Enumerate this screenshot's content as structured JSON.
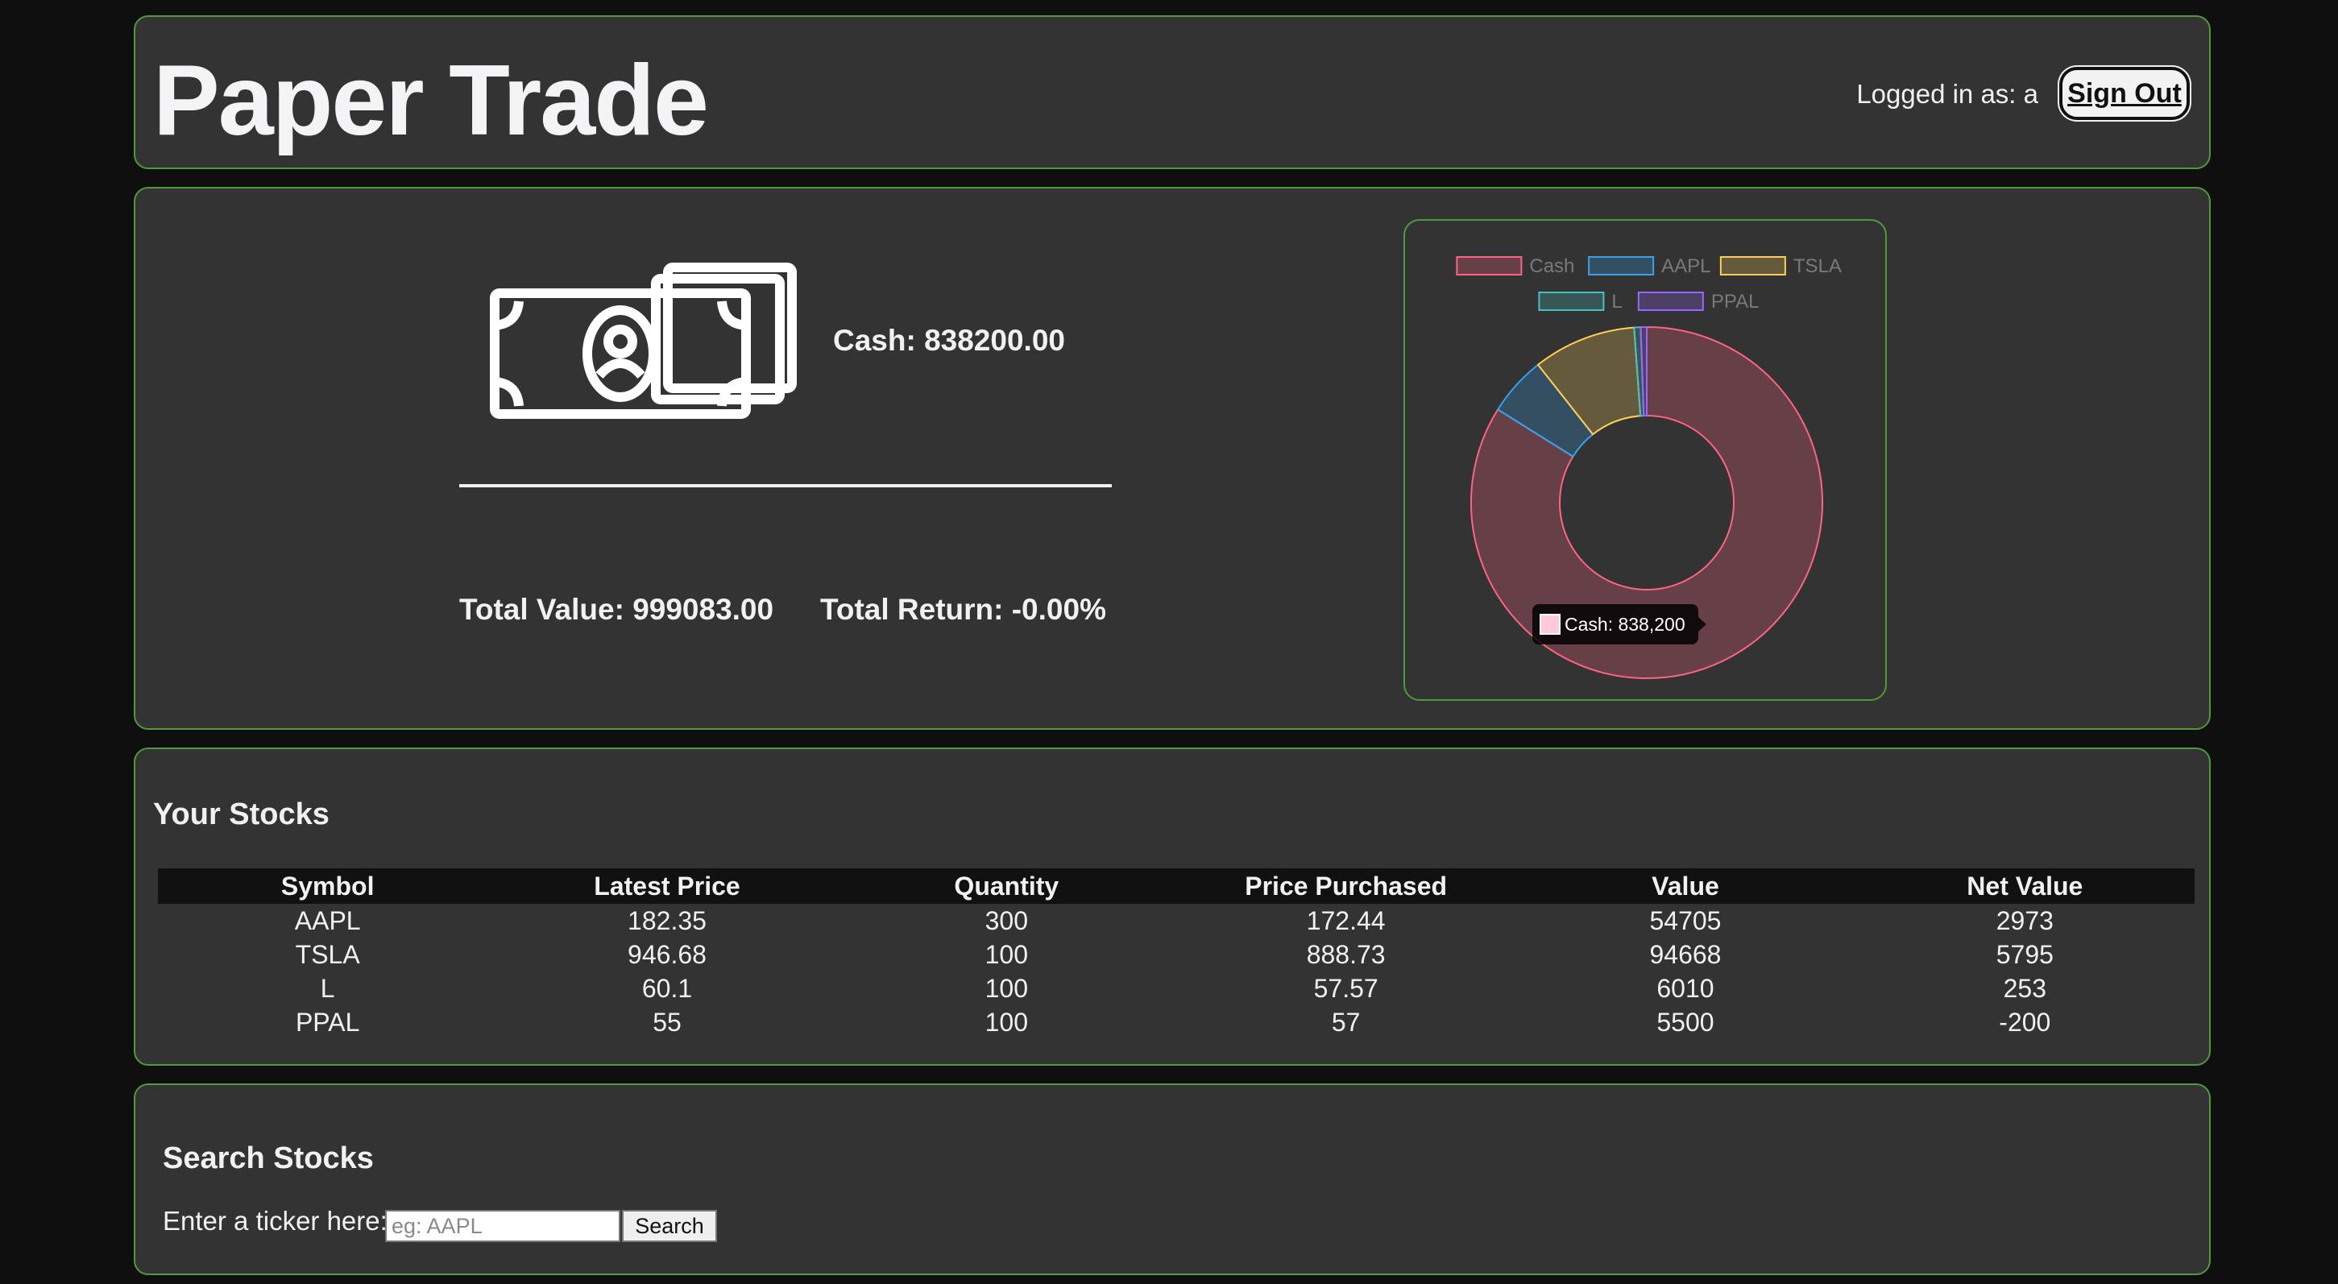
{
  "header": {
    "title": "Paper Trade",
    "logged_in_text": "Logged in as: a",
    "sign_out_label": "Sign Out"
  },
  "overview": {
    "icon": "money-bills-icon",
    "cash_text": "Cash: 838200.00",
    "total_value_text": "Total Value: 999083.00",
    "total_return_text": "Total Return: -0.00%"
  },
  "chart_data": {
    "type": "pie",
    "style": "doughnut",
    "categories": [
      "Cash",
      "AAPL",
      "TSLA",
      "L",
      "PPAL"
    ],
    "values": [
      838200,
      54705,
      94668,
      6010,
      5500
    ],
    "colors": [
      "#ff6384",
      "#36a2eb",
      "#ffce56",
      "#4bc0c0",
      "#9966ff"
    ],
    "legend_position": "top",
    "tooltip": {
      "label": "Cash: 838,200",
      "series_index": 0
    }
  },
  "stocks": {
    "title": "Your Stocks",
    "columns": [
      "Symbol",
      "Latest Price",
      "Quantity",
      "Price Purchased",
      "Value",
      "Net Value"
    ],
    "rows": [
      [
        "AAPL",
        "182.35",
        "300",
        "172.44",
        "54705",
        "2973"
      ],
      [
        "TSLA",
        "946.68",
        "100",
        "888.73",
        "94668",
        "5795"
      ],
      [
        "L",
        "60.1",
        "100",
        "57.57",
        "6010",
        "253"
      ],
      [
        "PPAL",
        "55",
        "100",
        "57",
        "5500",
        "-200"
      ]
    ]
  },
  "search": {
    "title": "Search Stocks",
    "label": "Enter a ticker here:",
    "placeholder": "eg: AAPL",
    "value": "",
    "button_label": "Search"
  },
  "colors": {
    "background": "#0f0f0f",
    "panel": "#333333",
    "panel_border": "#4f9a3a"
  }
}
